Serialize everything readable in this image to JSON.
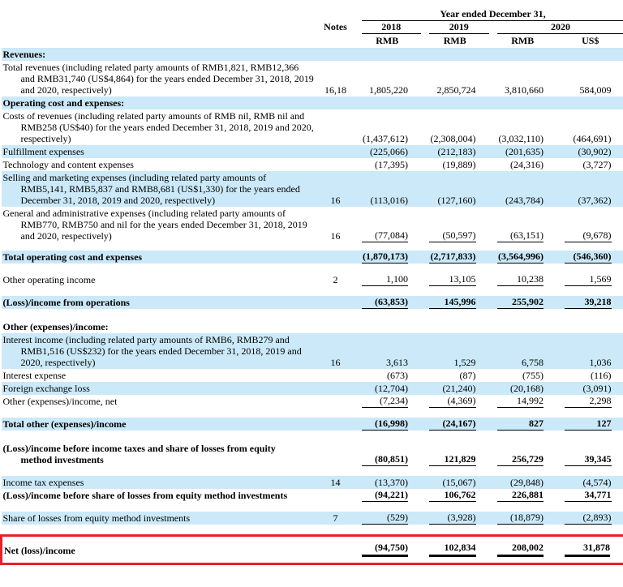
{
  "colors": {
    "row_highlight": "#cbe9f9",
    "annotation_box": "#e6212a",
    "text": "#000000"
  },
  "table": {
    "header": {
      "year_ended_label": "Year ended December 31,",
      "notes_label": "Notes",
      "years": [
        "2018",
        "2019",
        "2020"
      ],
      "currencies": [
        "RMB",
        "RMB",
        "RMB",
        "US$"
      ]
    },
    "rows": [
      {
        "label": "Revenues:",
        "note": "",
        "values": [],
        "bold": true,
        "highlight": true,
        "underline": "none",
        "gap_before": 0,
        "boxed": false
      },
      {
        "label": "Total revenues (including related party amounts of RMB1,821, RMB12,366\nand RMB31,740 (US$4,864) for the years ended December 31, 2018, 2019\nand 2020, respectively)",
        "note": "16,18",
        "values": [
          "1,805,220",
          "2,850,724",
          "3,810,660",
          "584,009"
        ],
        "bold": false,
        "highlight": false,
        "underline": "none",
        "gap_before": 0,
        "boxed": false
      },
      {
        "label": "Operating cost and expenses:",
        "note": "",
        "values": [],
        "bold": true,
        "highlight": true,
        "underline": "none",
        "gap_before": 0,
        "boxed": false
      },
      {
        "label": "Costs of revenues (including related party amounts of RMB nil, RMB nil and\nRMB258 (US$40) for the years ended December 31, 2018, 2019 and 2020,\nrespectively)",
        "note": "",
        "values": [
          "(1,437,612)",
          "(2,308,004)",
          "(3,032,110)",
          "(464,691)"
        ],
        "bold": false,
        "highlight": false,
        "underline": "none",
        "gap_before": 0,
        "boxed": false
      },
      {
        "label": "Fulfillment expenses",
        "note": "",
        "values": [
          "(225,066)",
          "(212,183)",
          "(201,635)",
          "(30,902)"
        ],
        "bold": false,
        "highlight": true,
        "underline": "none",
        "gap_before": 0,
        "boxed": false
      },
      {
        "label": "Technology and content expenses",
        "note": "",
        "values": [
          "(17,395)",
          "(19,889)",
          "(24,316)",
          "(3,727)"
        ],
        "bold": false,
        "highlight": false,
        "underline": "none",
        "gap_before": 0,
        "boxed": false
      },
      {
        "label": "Selling and marketing expenses (including related party amounts of\nRMB5,141, RMB5,837 and RMB8,681 (US$1,330) for the years ended\nDecember 31, 2018, 2019 and 2020, respectively)",
        "note": "16",
        "values": [
          "(113,016)",
          "(127,160)",
          "(243,784)",
          "(37,362)"
        ],
        "bold": false,
        "highlight": true,
        "underline": "none",
        "gap_before": 0,
        "boxed": false
      },
      {
        "label": "General and administrative expenses (including related party amounts of\nRMB770, RMB750 and nil for the years ended December 31, 2018, 2019\nand 2020, respectively)",
        "note": "16",
        "values": [
          "(77,084)",
          "(50,597)",
          "(63,151)",
          "(9,678)"
        ],
        "bold": false,
        "highlight": false,
        "underline": "single",
        "gap_before": 0,
        "boxed": false
      },
      {
        "label": "Total operating cost and expenses",
        "note": "",
        "values": [
          "(1,870,173)",
          "(2,717,833)",
          "(3,564,996)",
          "(546,360)"
        ],
        "bold": true,
        "highlight": true,
        "underline": "single",
        "gap_before": 10,
        "boxed": false
      },
      {
        "label": "Other operating income",
        "note": "2",
        "values": [
          "1,100",
          "13,105",
          "10,238",
          "1,569"
        ],
        "bold": false,
        "highlight": false,
        "underline": "single",
        "gap_before": 12,
        "boxed": false
      },
      {
        "label": "(Loss)/income from operations",
        "note": "",
        "values": [
          "(63,853)",
          "145,996",
          "255,902",
          "39,218"
        ],
        "bold": true,
        "highlight": true,
        "underline": "single",
        "gap_before": 12,
        "boxed": false
      },
      {
        "label": "Other (expenses)/income:",
        "note": "",
        "values": [],
        "bold": true,
        "highlight": false,
        "underline": "none",
        "gap_before": 14,
        "boxed": false
      },
      {
        "label": "Interest income (including related party amounts of RMB6, RMB279 and\nRMB1,516 (US$232) for the years ended December 31, 2018, 2019 and\n2020, respectively)",
        "note": "16",
        "values": [
          "3,613",
          "1,529",
          "6,758",
          "1,036"
        ],
        "bold": false,
        "highlight": true,
        "underline": "none",
        "gap_before": 0,
        "boxed": false
      },
      {
        "label": "Interest expense",
        "note": "",
        "values": [
          "(673)",
          "(87)",
          "(755)",
          "(116)"
        ],
        "bold": false,
        "highlight": false,
        "underline": "none",
        "gap_before": 0,
        "boxed": false
      },
      {
        "label": "Foreign exchange loss",
        "note": "",
        "values": [
          "(12,704)",
          "(21,240)",
          "(20,168)",
          "(3,091)"
        ],
        "bold": false,
        "highlight": true,
        "underline": "none",
        "gap_before": 0,
        "boxed": false
      },
      {
        "label": "Other (expenses)/income, net",
        "note": "",
        "values": [
          "(7,234)",
          "(4,369)",
          "14,992",
          "2,298"
        ],
        "bold": false,
        "highlight": false,
        "underline": "single",
        "gap_before": 0,
        "boxed": false
      },
      {
        "label": "Total other (expenses)/income",
        "note": "",
        "values": [
          "(16,998)",
          "(24,167)",
          "827",
          "127"
        ],
        "bold": true,
        "highlight": true,
        "underline": "single",
        "gap_before": 12,
        "boxed": false
      },
      {
        "label": "(Loss)/income before income taxes and share of losses from equity\nmethod investments",
        "note": "",
        "values": [
          "(80,851)",
          "121,829",
          "256,729",
          "39,345"
        ],
        "bold": true,
        "highlight": false,
        "underline": "single",
        "gap_before": 14,
        "boxed": false
      },
      {
        "label": "Income tax expenses",
        "note": "14",
        "values": [
          "(13,370)",
          "(15,067)",
          "(29,848)",
          "(4,574)"
        ],
        "bold": false,
        "highlight": true,
        "underline": "none",
        "gap_before": 12,
        "boxed": false
      },
      {
        "label": "(Loss)/income before share of losses from equity method investments",
        "note": "",
        "values": [
          "(94,221)",
          "106,762",
          "226,881",
          "34,771"
        ],
        "bold": true,
        "highlight": false,
        "underline": "single",
        "gap_before": 0,
        "boxed": false
      },
      {
        "label": "Share of losses from equity method investments",
        "note": "7",
        "values": [
          "(529)",
          "(3,928)",
          "(18,879)",
          "(2,893)"
        ],
        "bold": false,
        "highlight": true,
        "underline": "single",
        "gap_before": 12,
        "boxed": false
      },
      {
        "label": "Net (loss)/income",
        "note": "",
        "values": [
          "(94,750)",
          "102,834",
          "208,002",
          "31,878"
        ],
        "bold": true,
        "highlight": false,
        "underline": "thick",
        "gap_before": 12,
        "boxed": true
      }
    ]
  }
}
